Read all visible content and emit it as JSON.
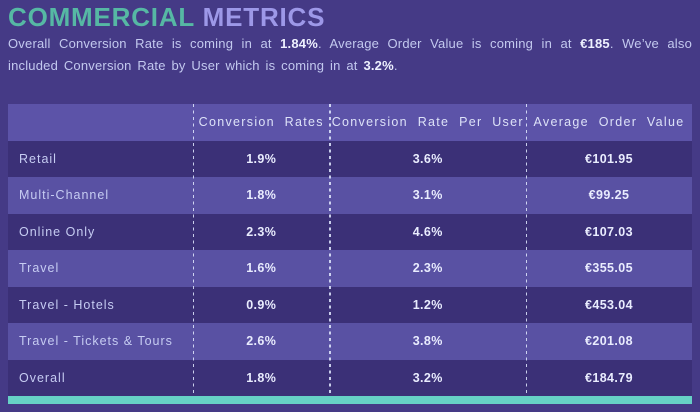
{
  "title": {
    "part1": "COMMERCIAL",
    "part2": "METRICS"
  },
  "intro": {
    "segments": [
      {
        "text": "Overall Conversion Rate is coming in at ",
        "bold": false
      },
      {
        "text": "1.84%",
        "bold": true
      },
      {
        "text": ". Average Order Value is coming in at ",
        "bold": false
      },
      {
        "text": "€185",
        "bold": true
      },
      {
        "text": ". We’ve also included Conversion Rate by User which is coming in at ",
        "bold": false
      },
      {
        "text": "3.2%",
        "bold": true
      },
      {
        "text": ".",
        "bold": false
      }
    ]
  },
  "table": {
    "columns": [
      "",
      "Conversion Rates",
      "Conversion Rate Per User",
      "Average Order Value"
    ],
    "rows": [
      {
        "label": "Retail",
        "values": [
          "1.9%",
          "3.6%",
          "€101.95"
        ]
      },
      {
        "label": "Multi-Channel",
        "values": [
          "1.8%",
          "3.1%",
          "€99.25"
        ]
      },
      {
        "label": "Online Only",
        "values": [
          "2.3%",
          "4.6%",
          "€107.03"
        ]
      },
      {
        "label": "Travel",
        "values": [
          "1.6%",
          "2.3%",
          "€355.05"
        ]
      },
      {
        "label": "Travel - Hotels",
        "values": [
          "0.9%",
          "1.2%",
          "€453.04"
        ]
      },
      {
        "label": "Travel - Tickets & Tours",
        "values": [
          "2.6%",
          "3.8%",
          "€201.08"
        ]
      },
      {
        "label": "Overall",
        "values": [
          "1.8%",
          "3.2%",
          "€184.79"
        ]
      }
    ]
  },
  "colors": {
    "page_background": "#453a86",
    "row_dark": "#3b3077",
    "row_light": "#5951a3",
    "header_background": "#5c53a8",
    "accent_teal": "#67d1c6",
    "title_teal": "#56b8a4",
    "title_lavender": "#9d98e8"
  },
  "chart_data": {
    "type": "table",
    "title": "COMMERCIAL METRICS",
    "categories": [
      "Retail",
      "Multi-Channel",
      "Online Only",
      "Travel",
      "Travel - Hotels",
      "Travel - Tickets & Tours",
      "Overall"
    ],
    "series": [
      {
        "name": "Conversion Rates",
        "unit": "%",
        "values": [
          1.9,
          1.8,
          2.3,
          1.6,
          0.9,
          2.6,
          1.8
        ]
      },
      {
        "name": "Conversion Rate Per User",
        "unit": "%",
        "values": [
          3.6,
          3.1,
          4.6,
          2.3,
          1.2,
          3.8,
          3.2
        ]
      },
      {
        "name": "Average Order Value",
        "unit": "€",
        "values": [
          101.95,
          99.25,
          107.03,
          355.05,
          453.04,
          201.08,
          184.79
        ]
      }
    ],
    "annotations": {
      "overall_conversion_rate": "1.84%",
      "average_order_value": "€185",
      "conversion_rate_by_user": "3.2%"
    }
  }
}
